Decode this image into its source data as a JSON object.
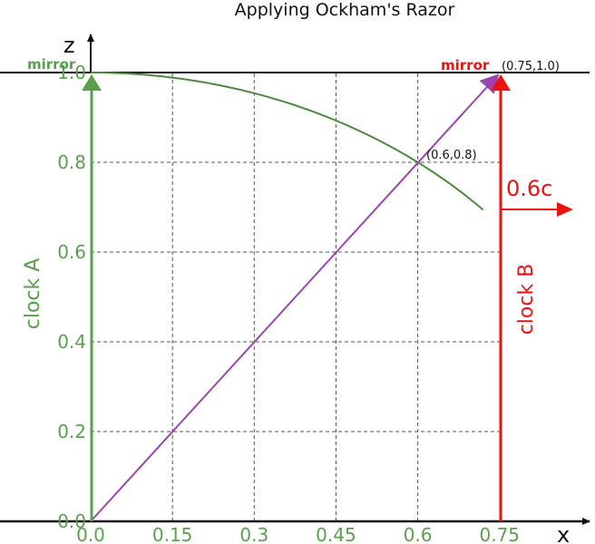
{
  "title": "Applying Ockham's Razor",
  "axes": {
    "x_label": "x",
    "z_label": "z",
    "x_ticks": [
      "0.0",
      "0.15",
      "0.3",
      "0.45",
      "0.6",
      "0.75"
    ],
    "z_ticks": [
      "0.0",
      "0.2",
      "0.4",
      "0.6",
      "0.8",
      "1.0"
    ],
    "x_range": [
      0,
      0.75
    ],
    "z_range": [
      0,
      1.0
    ],
    "grid": "dashed"
  },
  "labels": {
    "mirror_a": "mirror",
    "mirror_b": "mirror",
    "mirror_b_point": "(0.75,1.0)",
    "intersection_point": "(0.6,0.8)",
    "clock_a": "clock A",
    "clock_b": "clock B",
    "speed": "0.6c"
  },
  "points": {
    "mirror_b": [
      0.75,
      1.0
    ],
    "intersection": [
      0.6,
      0.8
    ]
  },
  "curve": {
    "description": "circle arc z = sqrt(1 - x^2)",
    "x_start": 0,
    "x_end": 0.72
  },
  "colors": {
    "clock_a": "#5aa04c",
    "clock_b": "#ee1111",
    "diagonal": "#9b44b0",
    "curve": "#4a8a3a",
    "grid": "#555555",
    "axis": "#111111"
  }
}
